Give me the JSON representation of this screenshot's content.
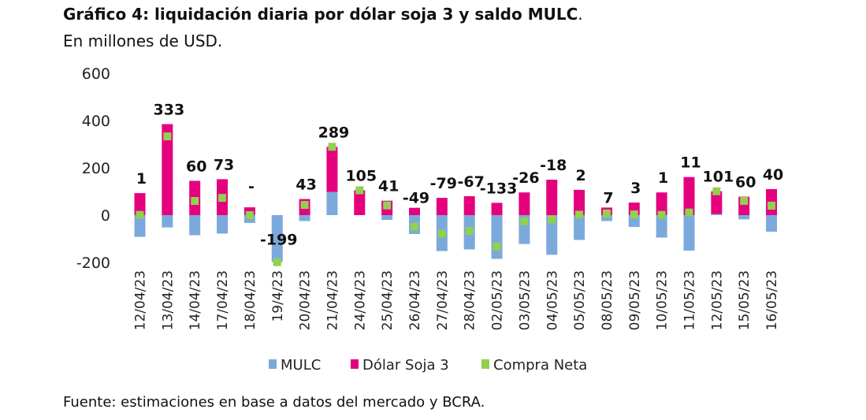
{
  "header": {
    "title": "Gráfico 4: liquidación diaria por dólar soja 3 y saldo MULC",
    "title_suffix": ".",
    "subtitle": "En millones de USD."
  },
  "footer": {
    "source": "Fuente: estimaciones en base a datos del mercado y BCRA."
  },
  "chart_data": {
    "type": "bar",
    "subtype": "stacked bar with point overlay",
    "ylim": [
      -200,
      600
    ],
    "yticks": [
      "600",
      "400",
      "200",
      "0",
      "-200"
    ],
    "ytick_values": [
      600,
      400,
      200,
      0,
      -200
    ],
    "grid": false,
    "legend_position": "bottom",
    "categories": [
      "12/04/23",
      "13/04/23",
      "14/04/23",
      "17/04/23",
      "18/04/23",
      "19/4/23",
      "20/04/23",
      "21/04/23",
      "24/04/23",
      "25/04/23",
      "26/04/23",
      "27/04/23",
      "28/04/23",
      "02/05/23",
      "03/05/23",
      "04/05/23",
      "05/05/23",
      "08/05/23",
      "09/05/23",
      "10/05/23",
      "11/05/23",
      "12/05/23",
      "15/05/23",
      "16/05/23"
    ],
    "series": [
      {
        "name": "MULC",
        "kind": "bar",
        "color": "#7BA9DB",
        "values": [
          -92,
          -52,
          -85,
          -78,
          -33,
          -199,
          -25,
          98,
          0,
          -20,
          -80,
          -152,
          -145,
          -185,
          -122,
          -168,
          -105,
          -25,
          -50,
          -95,
          -150,
          5,
          -18,
          -70
        ]
      },
      {
        "name": "Dólar Soja 3",
        "kind": "bar",
        "color": "#E5007E",
        "values": [
          93,
          385,
          145,
          152,
          33,
          0,
          68,
          191,
          105,
          61,
          31,
          73,
          80,
          52,
          96,
          150,
          107,
          32,
          53,
          96,
          161,
          96,
          78,
          110
        ]
      },
      {
        "name": "Compra Neta",
        "kind": "point",
        "color": "#92D050",
        "values": [
          1,
          333,
          60,
          73,
          0,
          -199,
          43,
          289,
          105,
          41,
          -49,
          -79,
          -67,
          -133,
          -26,
          -18,
          2,
          7,
          3,
          1,
          11,
          101,
          60,
          40
        ]
      }
    ],
    "data_labels": [
      "1",
      "333",
      "60",
      "73",
      "-",
      "-199",
      "43",
      "289",
      "105",
      "41",
      "-49",
      "-79",
      "-67",
      "-133",
      "-26",
      "-18",
      "2",
      "7",
      "3",
      "1",
      "11",
      "101",
      "60",
      "40"
    ]
  }
}
